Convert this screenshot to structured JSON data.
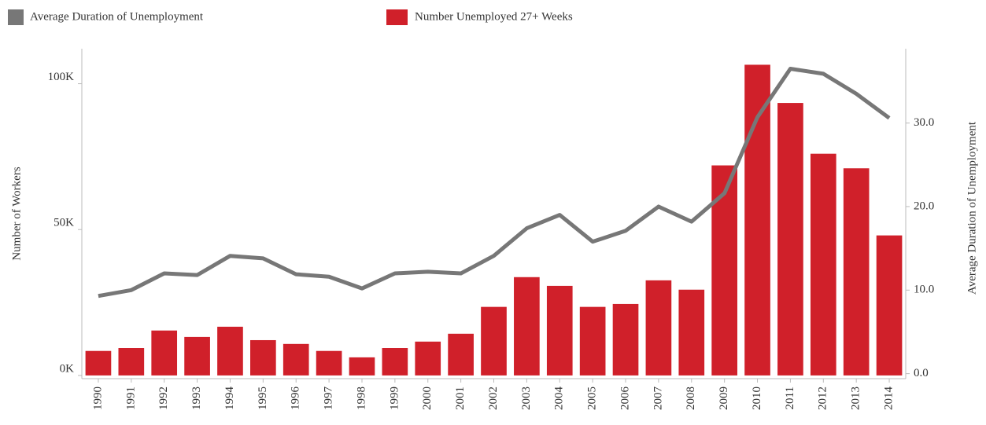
{
  "chart_data": {
    "type": "bar_line",
    "legend": [
      "Average Duration of Unemployment",
      "Number Unemployed 27+ Weeks"
    ],
    "y_label": "Number of Workers",
    "y2_label": "Average Duration of Unemployment",
    "categories": [
      "1990",
      "1991",
      "1992",
      "1993",
      "1994",
      "1995",
      "1996",
      "1997",
      "1998",
      "1999",
      "2000",
      "2001",
      "2002",
      "2003",
      "2004",
      "2005",
      "2006",
      "2007",
      "2008",
      "2009",
      "2010",
      "2011",
      "2012",
      "2013",
      "2014"
    ],
    "series": [
      {
        "name": "Number Unemployed 27+ Weeks",
        "kind": "bar",
        "color": "#d0202a",
        "values": [
          8400,
          9400,
          15400,
          13200,
          16700,
          12100,
          10800,
          8400,
          6200,
          9400,
          11600,
          14300,
          23500,
          33700,
          30700,
          23500,
          24500,
          32600,
          29400,
          72000,
          106500,
          93400,
          76000,
          71000,
          48000
        ]
      },
      {
        "name": "Average Duration of Unemployment",
        "kind": "line",
        "axis": "y2",
        "color": "#777777",
        "values": [
          9.3,
          10.0,
          12.0,
          11.8,
          14.1,
          13.8,
          11.9,
          11.6,
          10.2,
          12.0,
          12.2,
          12.0,
          14.1,
          17.4,
          19.0,
          15.8,
          17.1,
          20.0,
          18.2,
          21.6,
          30.7,
          36.5,
          35.9,
          33.5,
          30.6
        ]
      }
    ],
    "ylim": [
      -1100,
      112000
    ],
    "yticks": [
      {
        "value": 0,
        "label": "0K"
      },
      {
        "value": 50000,
        "label": "50K"
      },
      {
        "value": 100000,
        "label": "100K"
      }
    ],
    "y2lim": [
      -0.6,
      38.9
    ],
    "y2ticks": [
      {
        "value": 0,
        "label": "0.0"
      },
      {
        "value": 10,
        "label": "10.0"
      },
      {
        "value": 20,
        "label": "20.0"
      },
      {
        "value": 30,
        "label": "30.0"
      }
    ]
  }
}
